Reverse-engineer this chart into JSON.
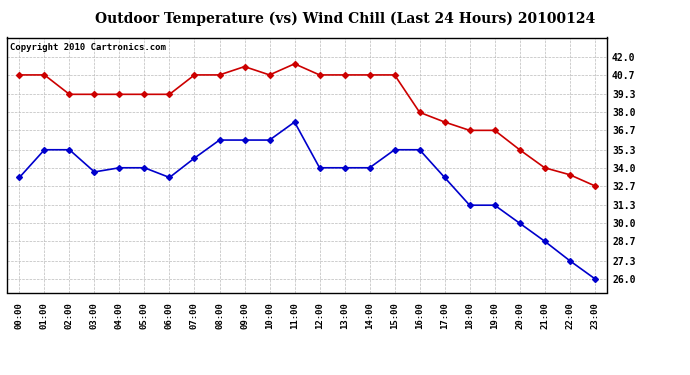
{
  "title": "Outdoor Temperature (vs) Wind Chill (Last 24 Hours) 20100124",
  "copyright": "Copyright 2010 Cartronics.com",
  "x_labels": [
    "00:00",
    "01:00",
    "02:00",
    "03:00",
    "04:00",
    "05:00",
    "06:00",
    "07:00",
    "08:00",
    "09:00",
    "10:00",
    "11:00",
    "12:00",
    "13:00",
    "14:00",
    "15:00",
    "16:00",
    "17:00",
    "18:00",
    "19:00",
    "20:00",
    "21:00",
    "22:00",
    "23:00"
  ],
  "temp_red": [
    40.7,
    40.7,
    39.3,
    39.3,
    39.3,
    39.3,
    39.3,
    40.7,
    40.7,
    41.3,
    40.7,
    41.5,
    40.7,
    40.7,
    40.7,
    40.7,
    38.0,
    37.3,
    36.7,
    36.7,
    35.3,
    34.0,
    33.5,
    32.7
  ],
  "wind_blue": [
    33.3,
    35.3,
    35.3,
    33.7,
    34.0,
    34.0,
    33.3,
    34.7,
    36.0,
    36.0,
    36.0,
    37.3,
    34.0,
    34.0,
    34.0,
    35.3,
    35.3,
    33.3,
    31.3,
    31.3,
    30.0,
    28.7,
    27.3,
    26.0
  ],
  "red_color": "#cc0000",
  "blue_color": "#0000cc",
  "bg_color": "#ffffff",
  "grid_color": "#bbbbbb",
  "ylim_min": 25.0,
  "ylim_max": 43.4,
  "yticks": [
    26.0,
    27.3,
    28.7,
    30.0,
    31.3,
    32.7,
    34.0,
    35.3,
    36.7,
    38.0,
    39.3,
    40.7,
    42.0
  ],
  "title_fontsize": 10,
  "copyright_fontsize": 6.5,
  "marker": "D",
  "marker_size": 3,
  "line_width": 1.2
}
